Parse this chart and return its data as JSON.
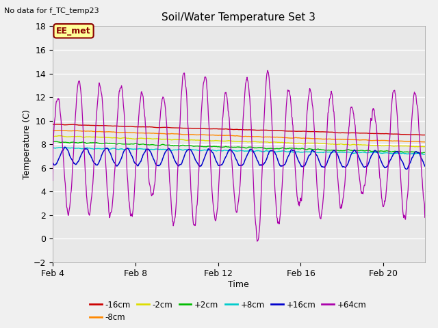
{
  "title": "Soil/Water Temperature Set 3",
  "subtitle": "No data for f_TC_temp23",
  "xlabel": "Time",
  "ylabel": "Temperature (C)",
  "annotation": "EE_met",
  "ylim": [
    -2,
    18
  ],
  "yticks": [
    -2,
    0,
    2,
    4,
    6,
    8,
    10,
    12,
    14,
    16,
    18
  ],
  "xtick_labels": [
    "Feb 4",
    "Feb 8",
    "Feb 12",
    "Feb 16",
    "Feb 20"
  ],
  "xtick_positions": [
    4,
    8,
    12,
    16,
    20
  ],
  "xmin": 4,
  "xmax": 22,
  "background_color": "#f0f0f0",
  "plot_bg_color": "#e8e8e8",
  "grid_color": "#ffffff",
  "series": [
    {
      "label": "-16cm",
      "color": "#cc0000"
    },
    {
      "label": "-8cm",
      "color": "#ff8800"
    },
    {
      "label": "-2cm",
      "color": "#dddd00"
    },
    {
      "label": "+2cm",
      "color": "#00bb00"
    },
    {
      "label": "+8cm",
      "color": "#00cccc"
    },
    {
      "label": "+16cm",
      "color": "#0000cc"
    },
    {
      "label": "+64cm",
      "color": "#aa00aa"
    }
  ]
}
